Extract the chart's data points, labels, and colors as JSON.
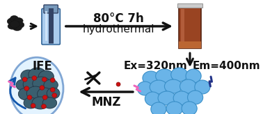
{
  "bg_color": "#ffffff",
  "top_arrow_text1": "80°C 7h",
  "top_arrow_text2": "hydrothermal",
  "ex_text": "Ex=320nm",
  "em_text": "Em=400nm",
  "mnz_text": "MNZ",
  "ife_text": "IFE",
  "blue_dot_color": "#6ab4e8",
  "blue_dot_edge": "#3a8fc8",
  "dark_dot_color": "#3a5f6f",
  "dark_dot_edge": "#223344",
  "red_dot_color": "#cc1111",
  "arrow_color": "#111111",
  "blue_arc_color": "#1155aa",
  "pink_bolt_color": "#ee66bb",
  "dark_bolt_color": "#223388",
  "autoclave_color": "#6699cc",
  "brown_color": "#aa4422",
  "font_size_main": 10,
  "figw": 3.78,
  "figh": 1.65,
  "dpi": 100
}
